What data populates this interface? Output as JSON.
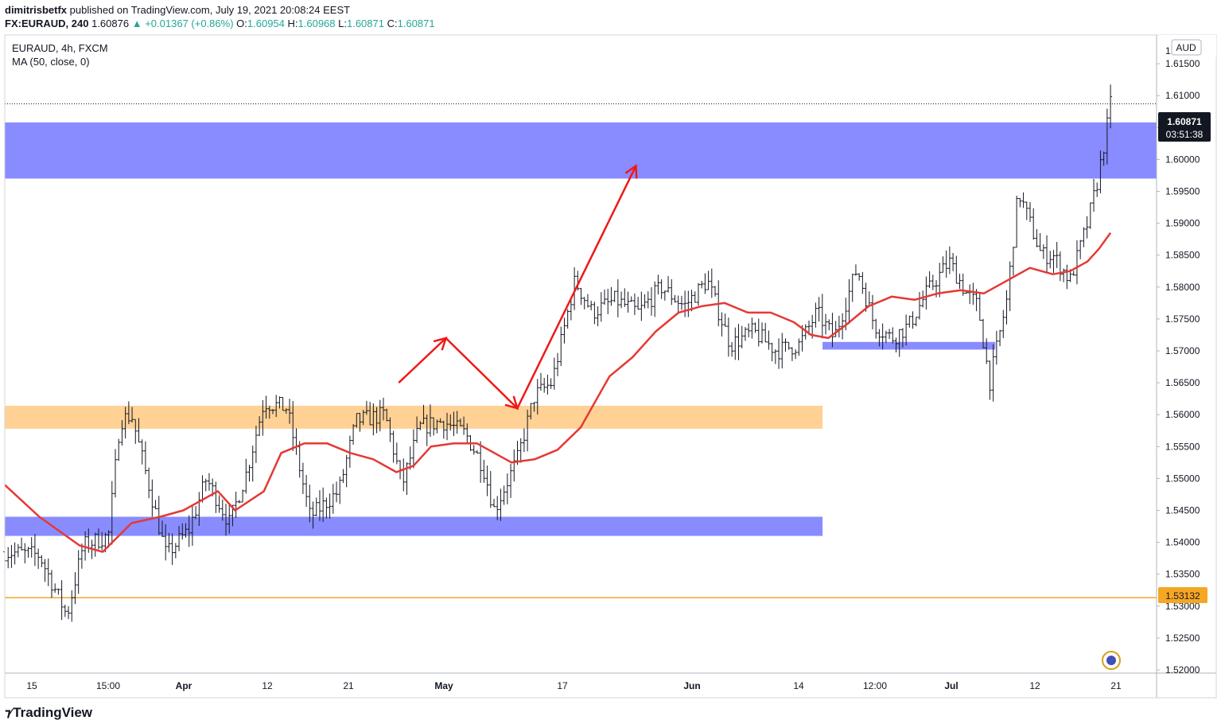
{
  "header": {
    "author": "dimitrisbetfx",
    "published": "published on TradingView.com, July 19, 2021 20:08:24 EEST",
    "symbol": "FX:EURAUD, 240",
    "last": "1.60876",
    "change": "+0.01367 (+0.86%)",
    "open_label": "O:",
    "open": "1.60954",
    "high_label": "H:",
    "high": "1.60968",
    "low_label": "L:",
    "low": "1.60871",
    "close_label": "C:",
    "close": "1.60871"
  },
  "legend": {
    "series": "EURAUD, 4h, FXCM",
    "indicator": "MA (50, close, 0)"
  },
  "axis": {
    "currency": "AUD",
    "price_tag": "1.60871",
    "countdown": "03:51:38",
    "level_tag": "1.53132",
    "top_clipped": "1.6"
  },
  "branding": {
    "name": "TradingView"
  },
  "colors": {
    "bull": "#26a69a",
    "ma": "#e53935",
    "zone_blue": "#8286ff",
    "zone_orange": "#ffcf8f",
    "level": "#f5a623",
    "arrows": "#f01818"
  },
  "chart_data": {
    "type": "ohlc",
    "ylim": [
      1.5195,
      1.6195
    ],
    "y_ticks": [
      "1.52000",
      "1.52500",
      "1.53000",
      "1.53500",
      "1.54000",
      "1.54500",
      "1.55000",
      "1.55500",
      "1.56000",
      "1.56500",
      "1.57000",
      "1.57500",
      "1.58000",
      "1.58500",
      "1.59000",
      "1.59500",
      "1.60000",
      "1.60500",
      "1.61000",
      "1.61500"
    ],
    "x_ticks": [
      "15",
      "15:00",
      "Apr",
      "12",
      "21",
      "May",
      "17",
      "Jun",
      "14",
      "12:00",
      "Jul",
      "12",
      "21"
    ],
    "price_path": [
      [
        0.0,
        1.5385
      ],
      [
        3.0,
        1.538
      ],
      [
        5.4,
        1.5285
      ],
      [
        6.8,
        1.5395
      ],
      [
        9.0,
        1.541
      ],
      [
        10.0,
        1.559
      ],
      [
        11.0,
        1.56
      ],
      [
        14.0,
        1.538
      ],
      [
        16.0,
        1.542
      ],
      [
        17.5,
        1.55
      ],
      [
        19.5,
        1.543
      ],
      [
        21.0,
        1.551
      ],
      [
        22.5,
        1.562
      ],
      [
        24.5,
        1.561
      ],
      [
        26.5,
        1.544
      ],
      [
        29.0,
        1.548
      ],
      [
        30.5,
        1.559
      ],
      [
        33.0,
        1.56
      ],
      [
        34.5,
        1.549
      ],
      [
        36.0,
        1.558
      ],
      [
        38.0,
        1.559
      ],
      [
        40.0,
        1.557
      ],
      [
        41.5,
        1.552
      ],
      [
        42.5,
        1.545
      ],
      [
        44.5,
        1.553
      ],
      [
        46.0,
        1.563
      ],
      [
        47.5,
        1.565
      ],
      [
        49.5,
        1.581
      ],
      [
        51.0,
        1.576
      ],
      [
        53.0,
        1.578
      ],
      [
        55.0,
        1.576
      ],
      [
        57.0,
        1.58
      ],
      [
        59.0,
        1.577
      ],
      [
        61.0,
        1.581
      ],
      [
        63.0,
        1.571
      ],
      [
        65.0,
        1.573
      ],
      [
        67.0,
        1.57
      ],
      [
        69.0,
        1.571
      ],
      [
        70.5,
        1.576
      ],
      [
        72.0,
        1.572
      ],
      [
        74.0,
        1.583
      ],
      [
        75.5,
        1.574
      ],
      [
        77.0,
        1.572
      ],
      [
        78.5,
        1.574
      ],
      [
        80.0,
        1.579
      ],
      [
        82.0,
        1.584
      ],
      [
        83.5,
        1.579
      ],
      [
        84.5,
        1.577
      ],
      [
        85.5,
        1.565
      ],
      [
        87.0,
        1.578
      ],
      [
        88.0,
        1.595
      ],
      [
        90.0,
        1.585
      ],
      [
        91.0,
        1.585
      ],
      [
        92.5,
        1.581
      ],
      [
        94.0,
        1.59
      ],
      [
        94.8,
        1.596
      ],
      [
        95.6,
        1.604
      ],
      [
        96.0,
        1.6087
      ]
    ],
    "moving_average": {
      "name": "MA (50, close, 0)",
      "points": [
        [
          0.0,
          1.549
        ],
        [
          3.0,
          1.544
        ],
        [
          6.5,
          1.5395
        ],
        [
          8.5,
          1.5385
        ],
        [
          11.0,
          1.543
        ],
        [
          13.5,
          1.544
        ],
        [
          15.5,
          1.545
        ],
        [
          18.5,
          1.548
        ],
        [
          20.0,
          1.545
        ],
        [
          22.5,
          1.548
        ],
        [
          24.0,
          1.554
        ],
        [
          26.0,
          1.5555
        ],
        [
          28.0,
          1.5555
        ],
        [
          30.0,
          1.554
        ],
        [
          32.0,
          1.553
        ],
        [
          34.0,
          1.551
        ],
        [
          35.5,
          1.552
        ],
        [
          37.0,
          1.555
        ],
        [
          39.0,
          1.5555
        ],
        [
          41.0,
          1.5555
        ],
        [
          42.5,
          1.554
        ],
        [
          44.0,
          1.5525
        ],
        [
          46.0,
          1.553
        ],
        [
          48.0,
          1.5545
        ],
        [
          50.0,
          1.558
        ],
        [
          52.5,
          1.566
        ],
        [
          54.5,
          1.569
        ],
        [
          56.5,
          1.573
        ],
        [
          58.5,
          1.576
        ],
        [
          60.5,
          1.577
        ],
        [
          62.5,
          1.5775
        ],
        [
          64.5,
          1.576
        ],
        [
          66.5,
          1.576
        ],
        [
          68.5,
          1.5745
        ],
        [
          70.0,
          1.5725
        ],
        [
          71.5,
          1.572
        ],
        [
          73.0,
          1.574
        ],
        [
          75.0,
          1.577
        ],
        [
          77.0,
          1.5785
        ],
        [
          79.0,
          1.578
        ],
        [
          81.0,
          1.579
        ],
        [
          83.0,
          1.5795
        ],
        [
          85.0,
          1.579
        ],
        [
          87.0,
          1.581
        ],
        [
          89.0,
          1.583
        ],
        [
          91.0,
          1.582
        ],
        [
          92.5,
          1.5825
        ],
        [
          94.0,
          1.584
        ],
        [
          95.0,
          1.586
        ],
        [
          96.0,
          1.5885
        ]
      ]
    },
    "zones": [
      {
        "from": 1.597,
        "to": 1.6058,
        "x_start": 0,
        "x_end": 100,
        "color": "blue"
      },
      {
        "from": 1.5578,
        "to": 1.5614,
        "x_start": 0,
        "x_end": 71,
        "color": "orange"
      },
      {
        "from": 1.541,
        "to": 1.544,
        "x_start": 0,
        "x_end": 71,
        "color": "blue"
      },
      {
        "from": 1.5702,
        "to": 1.5714,
        "x_start": 71,
        "x_end": 86,
        "color": "blue"
      }
    ],
    "horizontal_lines": [
      {
        "price": 1.53132,
        "style": "solid",
        "color": "orange"
      },
      {
        "price": 1.60871,
        "style": "dotted",
        "color": "dark"
      }
    ],
    "arrow_path": [
      [
        34.2,
        1.565
      ],
      [
        38.3,
        1.572
      ],
      [
        44.5,
        1.561
      ],
      [
        54.8,
        1.599
      ]
    ]
  }
}
